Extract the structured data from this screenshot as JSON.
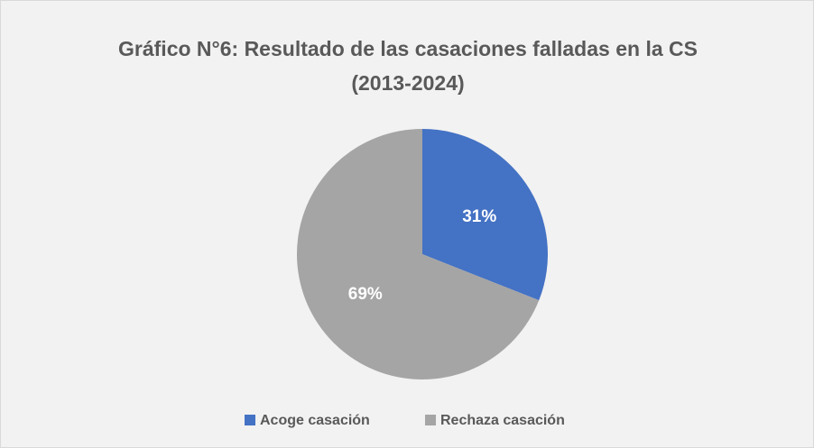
{
  "chart_data": {
    "type": "pie",
    "title": "Gráfico N°6: Resultado de las casaciones falladas en la CS (2013-2024)",
    "categories": [
      "Acoge casación",
      "Rechaza casación"
    ],
    "values": [
      31,
      69
    ],
    "value_labels": [
      "31%",
      "69%"
    ],
    "colors": [
      "#4472c4",
      "#a5a5a5"
    ],
    "legend": "bottom"
  }
}
